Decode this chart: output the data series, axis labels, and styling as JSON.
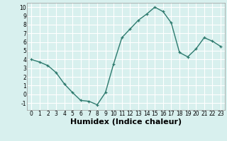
{
  "x": [
    0,
    1,
    2,
    3,
    4,
    5,
    6,
    7,
    8,
    9,
    10,
    11,
    12,
    13,
    14,
    15,
    16,
    17,
    18,
    19,
    20,
    21,
    22,
    23
  ],
  "y": [
    4.0,
    3.7,
    3.3,
    2.5,
    1.2,
    0.2,
    -0.7,
    -0.8,
    -1.2,
    0.2,
    3.5,
    6.5,
    7.5,
    8.5,
    9.2,
    10.0,
    9.5,
    8.2,
    4.8,
    4.3,
    5.2,
    6.5,
    6.1,
    5.5
  ],
  "xlabel": "Humidex (Indice chaleur)",
  "ylim": [
    -1.8,
    10.5
  ],
  "xlim": [
    -0.5,
    23.5
  ],
  "yticks": [
    -1,
    0,
    1,
    2,
    3,
    4,
    5,
    6,
    7,
    8,
    9,
    10
  ],
  "xticks": [
    0,
    1,
    2,
    3,
    4,
    5,
    6,
    7,
    8,
    9,
    10,
    11,
    12,
    13,
    14,
    15,
    16,
    17,
    18,
    19,
    20,
    21,
    22,
    23
  ],
  "line_color": "#2d7a6e",
  "marker": "+",
  "background_color": "#d8f0ee",
  "grid_color": "#ffffff",
  "tick_fontsize": 5.5,
  "xlabel_fontsize": 8
}
